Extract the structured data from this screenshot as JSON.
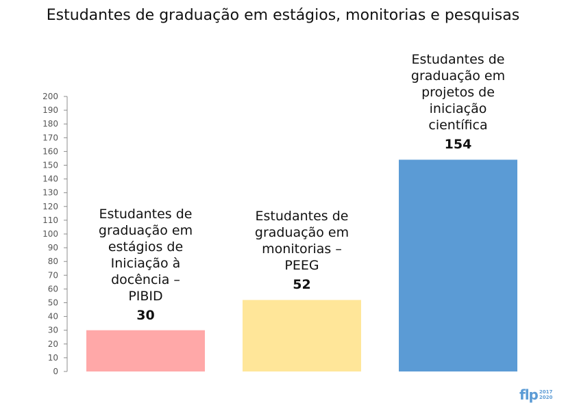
{
  "chart_data": {
    "type": "bar",
    "title": "Estudantes de graduação em estágios, monitorias e pesquisas",
    "categories": [
      "Estudantes de\ngraduação em\nestágios de\nIniciação à\ndocência –\nPIBID",
      "Estudantes de\ngraduação em\nmonitorias –\nPEEG",
      "Estudantes de\ngraduação em\nprojetos de\niniciação\ncientífica"
    ],
    "values": [
      30,
      52,
      154
    ],
    "value_labels": [
      "30",
      "52",
      "154"
    ],
    "colors": [
      "#ffa8a8",
      "#ffe699",
      "#5b9bd5"
    ],
    "ylim": [
      0,
      200
    ],
    "ytick_step": 10,
    "yticks": [
      "0",
      "10",
      "20",
      "30",
      "40",
      "50",
      "60",
      "70",
      "80",
      "90",
      "100",
      "110",
      "120",
      "130",
      "140",
      "150",
      "160",
      "170",
      "180",
      "190",
      "200"
    ],
    "xlabel": "",
    "ylabel": "",
    "grid": false,
    "legend": "none"
  },
  "logo": {
    "mark": "flp",
    "years_top": "2017",
    "years_bottom": "2020",
    "color": "#5b9bd5"
  }
}
